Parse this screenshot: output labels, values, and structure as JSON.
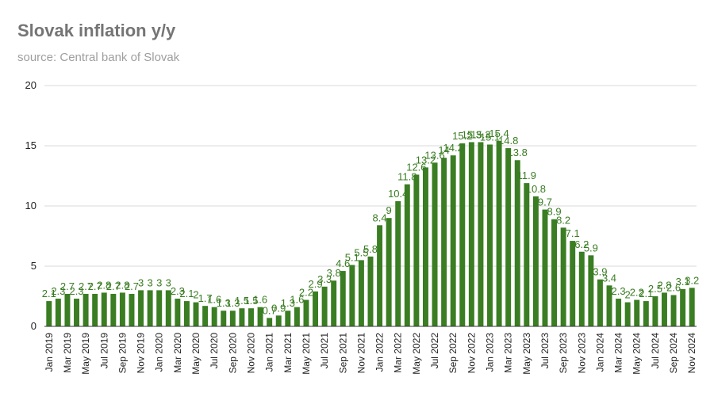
{
  "chart_data": {
    "type": "bar",
    "title": "Slovak inflation y/y",
    "subtitle": "source: Central bank of Slovak",
    "xlabel": "",
    "ylabel": "",
    "ylim": [
      0,
      20
    ],
    "yticks": [
      0,
      5,
      10,
      15,
      20
    ],
    "grid": true,
    "legend": "none",
    "bar_color": "#3a7d22",
    "label_color": "#4a8a2a",
    "categories": [
      "Jan 2019",
      "Feb 2019",
      "Mar 2019",
      "Apr 2019",
      "May 2019",
      "Jun 2019",
      "Jul 2019",
      "Aug 2019",
      "Sep 2019",
      "Oct 2019",
      "Nov 2019",
      "Dec 2019",
      "Jan 2020",
      "Feb 2020",
      "Mar 2020",
      "Apr 2020",
      "May 2020",
      "Jun 2020",
      "Jul 2020",
      "Aug 2020",
      "Sep 2020",
      "Oct 2020",
      "Nov 2020",
      "Dec 2020",
      "Jan 2021",
      "Feb 2021",
      "Mar 2021",
      "Apr 2021",
      "May 2021",
      "Jun 2021",
      "Jul 2021",
      "Aug 2021",
      "Sep 2021",
      "Oct 2021",
      "Nov 2021",
      "Dec 2021",
      "Jan 2022",
      "Feb 2022",
      "Mar 2022",
      "Apr 2022",
      "May 2022",
      "Jun 2022",
      "Jul 2022",
      "Aug 2022",
      "Sep 2022",
      "Oct 2022",
      "Nov 2022",
      "Dec 2022",
      "Jan 2023",
      "Feb 2023",
      "Mar 2023",
      "Apr 2023",
      "May 2023",
      "Jun 2023",
      "Jul 2023",
      "Aug 2023",
      "Sep 2023",
      "Oct 2023",
      "Nov 2023",
      "Dec 2023",
      "Jan 2024",
      "Feb 2024",
      "Mar 2024",
      "Apr 2024",
      "May 2024",
      "Jun 2024",
      "Jul 2024",
      "Aug 2024",
      "Sep 2024",
      "Oct 2024",
      "Nov 2024"
    ],
    "xtick_labels": [
      "Jan 2019",
      "Mar 2019",
      "May 2019",
      "Jul 2019",
      "Sep 2019",
      "Nov 2019",
      "Jan 2020",
      "Mar 2020",
      "May 2020",
      "Jul 2020",
      "Sep 2020",
      "Nov 2020",
      "Jan 2021",
      "Mar 2021",
      "May 2021",
      "Jul 2021",
      "Sep 2021",
      "Nov 2021",
      "Jan 2022",
      "Mar 2022",
      "May 2022",
      "Jul 2022",
      "Sep 2022",
      "Nov 2022",
      "Jan 2023",
      "Mar 2023",
      "May 2023",
      "Jul 2023",
      "Sep 2023",
      "Nov 2023",
      "Jan 2024",
      "Mar 2024",
      "May 2024",
      "Jul 2024",
      "Sep 2024",
      "Nov 2024"
    ],
    "values": [
      2.1,
      2.3,
      2.7,
      2.3,
      2.7,
      2.7,
      2.8,
      2.7,
      2.8,
      2.7,
      3.0,
      3.0,
      3.0,
      3.0,
      2.3,
      2.1,
      2.0,
      1.7,
      1.6,
      1.3,
      1.3,
      1.5,
      1.5,
      1.6,
      0.7,
      0.9,
      1.3,
      1.6,
      2.2,
      2.9,
      3.3,
      3.8,
      4.6,
      5.1,
      5.5,
      5.8,
      8.4,
      9.0,
      10.4,
      11.8,
      12.6,
      13.2,
      13.6,
      14.0,
      14.2,
      15.2,
      15.3,
      15.3,
      15.1,
      15.4,
      14.8,
      13.8,
      11.9,
      10.8,
      9.7,
      8.9,
      8.2,
      7.1,
      6.2,
      5.9,
      3.9,
      3.4,
      2.3,
      2.0,
      2.2,
      2.1,
      2.5,
      2.8,
      2.6,
      3.1,
      3.2
    ]
  }
}
